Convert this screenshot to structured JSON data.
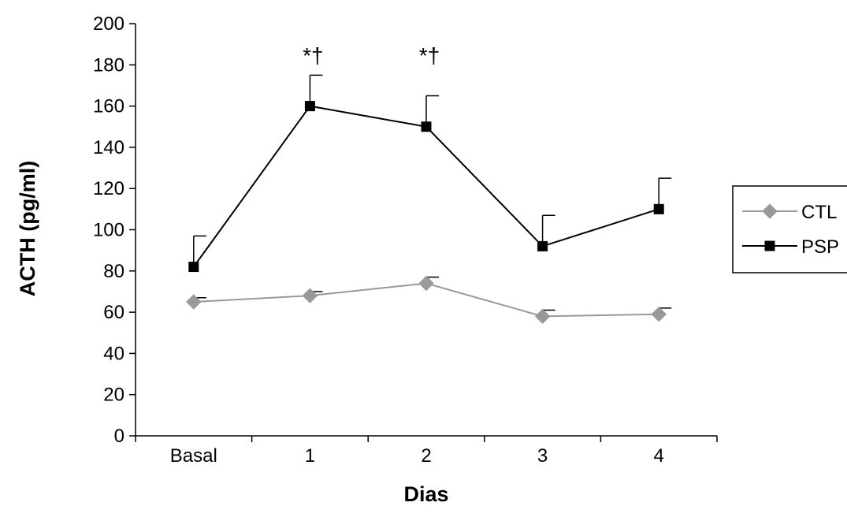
{
  "chart_data": {
    "type": "line",
    "title": "",
    "xlabel": "Dias",
    "ylabel": "ACTH (pg/ml)",
    "categories": [
      "Basal",
      "1",
      "2",
      "3",
      "4"
    ],
    "ylim": [
      0,
      200
    ],
    "yticks": [
      0,
      20,
      40,
      60,
      80,
      100,
      120,
      140,
      160,
      180,
      200
    ],
    "grid": false,
    "legend_position": "right",
    "series": [
      {
        "name": "CTL",
        "marker": "diamond",
        "color": "#999999",
        "values": [
          65,
          68,
          74,
          58,
          59
        ],
        "error": [
          2,
          2,
          3,
          3,
          3
        ]
      },
      {
        "name": "PSP",
        "marker": "square",
        "color": "#000000",
        "values": [
          82,
          160,
          150,
          92,
          110
        ],
        "error": [
          15,
          15,
          15,
          15,
          15
        ]
      }
    ],
    "annotations": [
      {
        "category": "1",
        "text": "*†"
      },
      {
        "category": "2",
        "text": "*†"
      }
    ]
  }
}
